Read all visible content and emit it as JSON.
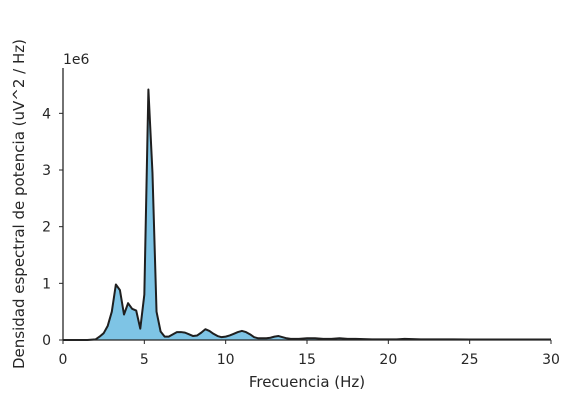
{
  "chart_data": {
    "type": "area",
    "title": "",
    "xlabel": "Frecuencia (Hz)",
    "ylabel": "Densidad espectral de potencia (uV^2 / Hz)",
    "y_offset_label": "1e6",
    "xlim": [
      0,
      30
    ],
    "ylim": [
      0,
      4.8
    ],
    "x_ticks": [
      0,
      5,
      10,
      15,
      20,
      25,
      30
    ],
    "y_ticks": [
      0,
      1,
      2,
      3,
      4
    ],
    "grid": false,
    "legend": "none",
    "fill_color": "#7ec4e5",
    "line_color": "#1f1f1f",
    "series": [
      {
        "x": [
          0,
          0.5,
          1,
          1.5,
          2,
          2.25,
          2.5,
          2.75,
          3.0,
          3.25,
          3.5,
          3.75,
          4.0,
          4.25,
          4.5,
          4.75,
          5.0,
          5.25,
          5.5,
          5.75,
          6.0,
          6.25,
          6.5,
          6.75,
          7.0,
          7.25,
          7.5,
          7.75,
          8.0,
          8.25,
          8.5,
          8.75,
          9.0,
          9.25,
          9.5,
          9.75,
          10.0,
          10.25,
          10.5,
          10.75,
          11.0,
          11.25,
          11.5,
          11.75,
          12.0,
          12.25,
          12.5,
          12.75,
          13.0,
          13.25,
          13.5,
          13.75,
          14.0,
          14.5,
          15.0,
          15.5,
          16.0,
          16.5,
          17.0,
          17.5,
          18.0,
          18.5,
          19.0,
          19.5,
          20.0,
          20.5,
          21.0,
          21.5,
          22.0,
          23.0,
          24.0,
          25.0,
          26.0,
          27.0,
          28.0,
          29.0,
          30.0
        ],
        "values": [
          0.0,
          0.0,
          0.0,
          0.0,
          0.01,
          0.06,
          0.12,
          0.25,
          0.5,
          0.98,
          0.88,
          0.45,
          0.65,
          0.55,
          0.52,
          0.2,
          0.8,
          4.42,
          2.95,
          0.5,
          0.15,
          0.06,
          0.06,
          0.1,
          0.14,
          0.14,
          0.13,
          0.1,
          0.07,
          0.08,
          0.13,
          0.19,
          0.16,
          0.11,
          0.07,
          0.05,
          0.06,
          0.08,
          0.11,
          0.14,
          0.16,
          0.14,
          0.1,
          0.05,
          0.03,
          0.03,
          0.03,
          0.04,
          0.06,
          0.07,
          0.05,
          0.03,
          0.02,
          0.02,
          0.03,
          0.03,
          0.02,
          0.02,
          0.03,
          0.02,
          0.02,
          0.015,
          0.01,
          0.01,
          0.01,
          0.012,
          0.02,
          0.015,
          0.01,
          0.01,
          0.01,
          0.008,
          0.008,
          0.008,
          0.008,
          0.008,
          0.008
        ]
      }
    ]
  }
}
